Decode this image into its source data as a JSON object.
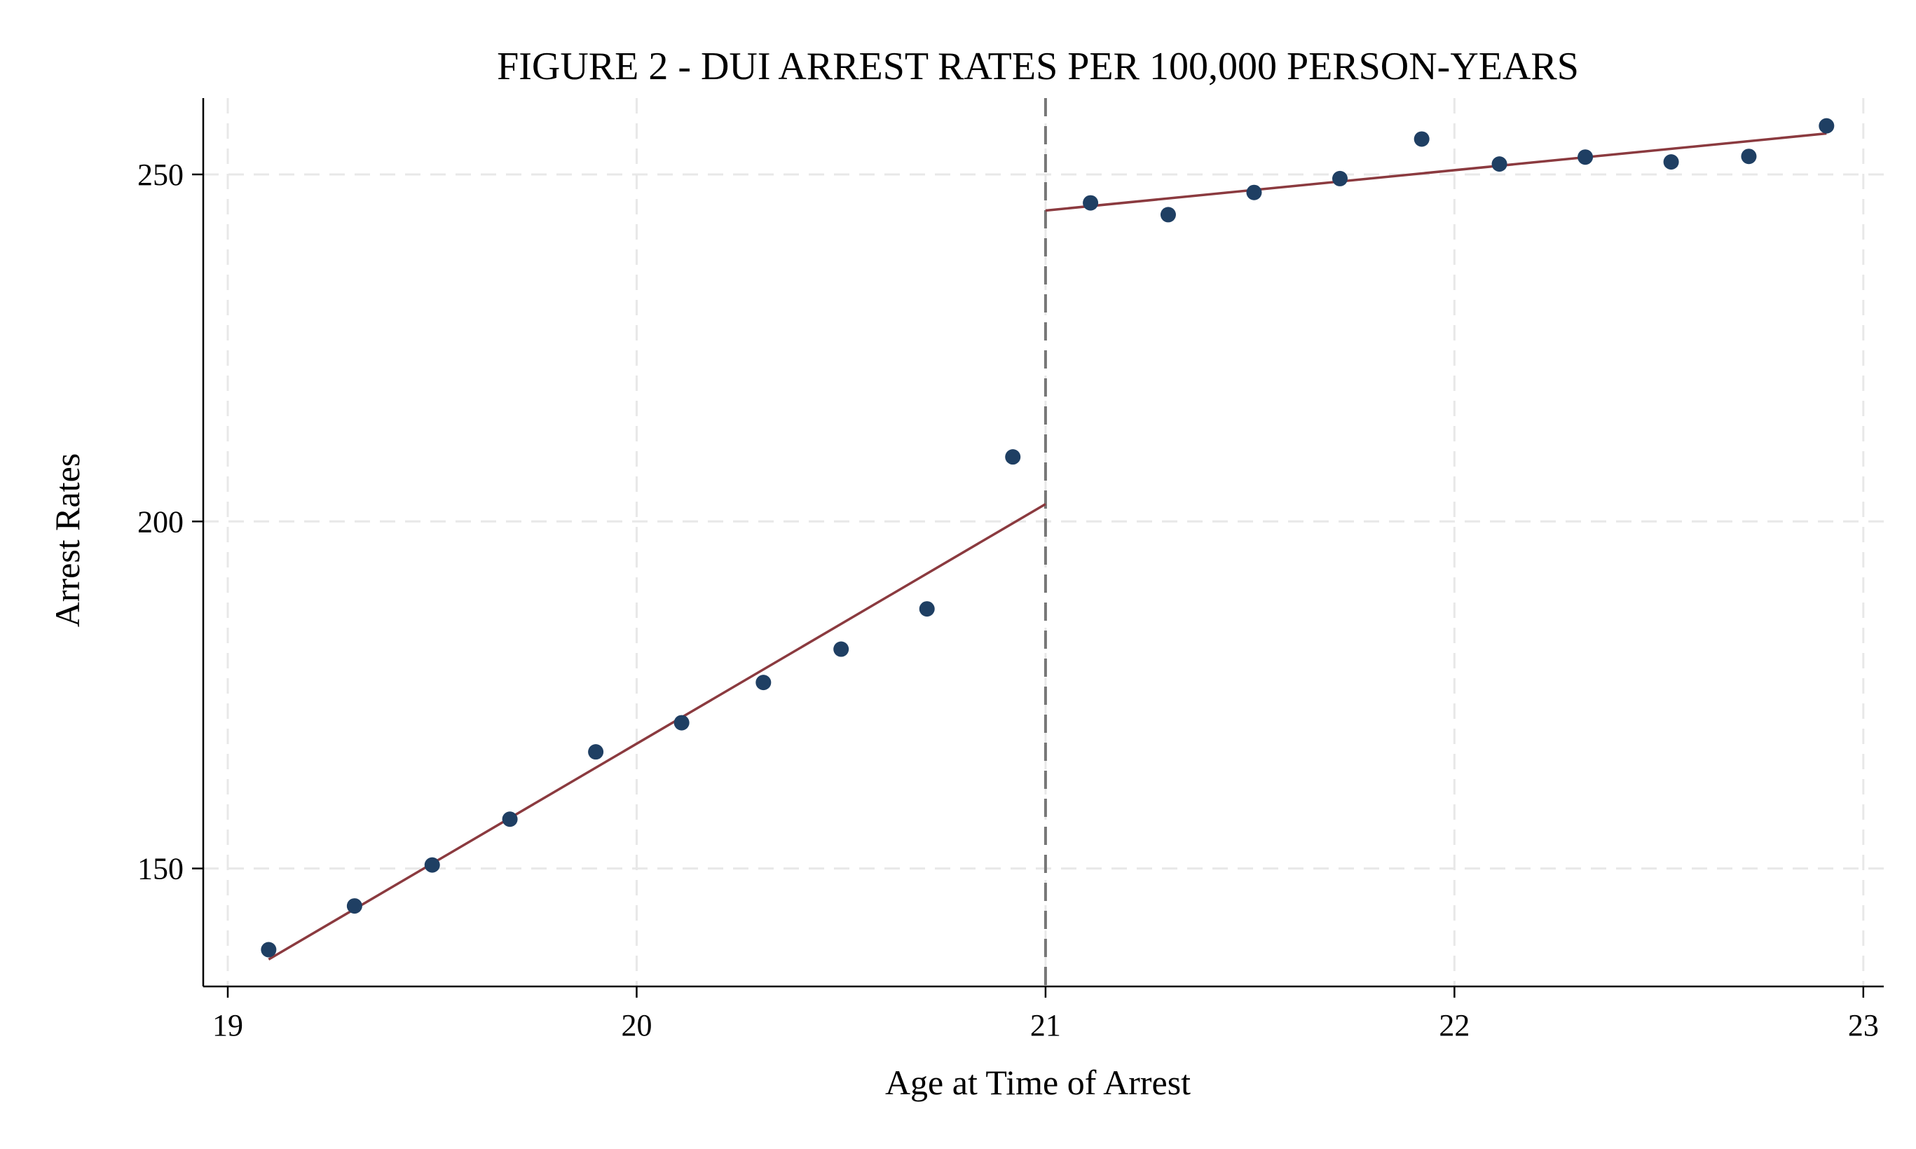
{
  "chart_data": {
    "type": "scatter",
    "title": "FIGURE 2 - DUI ARREST RATES PER 100,000 PERSON-YEARS",
    "xlabel": "Age at Time of Arrest",
    "ylabel": "Arrest Rates",
    "xlim": [
      18.94,
      23.05
    ],
    "ylim": [
      133,
      261
    ],
    "x_ticks": [
      19,
      20,
      21,
      22,
      23
    ],
    "x_tick_labels": [
      "19",
      "20",
      "21",
      "22",
      "23"
    ],
    "y_ticks": [
      150,
      200,
      250
    ],
    "y_tick_labels": [
      "150",
      "200",
      "250"
    ],
    "grid": true,
    "cutoff_x": 21,
    "series": [
      {
        "values": [
          {
            "x": 19.1,
            "y": 138.3
          },
          {
            "x": 19.31,
            "y": 144.6
          },
          {
            "x": 19.5,
            "y": 150.5
          },
          {
            "x": 19.69,
            "y": 157.1
          },
          {
            "x": 19.9,
            "y": 166.8
          },
          {
            "x": 20.11,
            "y": 171.0
          },
          {
            "x": 20.31,
            "y": 176.8
          },
          {
            "x": 20.5,
            "y": 181.6
          },
          {
            "x": 20.71,
            "y": 187.4
          },
          {
            "x": 20.92,
            "y": 209.3
          },
          {
            "x": 21.11,
            "y": 245.9
          },
          {
            "x": 21.3,
            "y": 244.2
          },
          {
            "x": 21.51,
            "y": 247.4
          },
          {
            "x": 21.72,
            "y": 249.4
          },
          {
            "x": 21.92,
            "y": 255.1
          },
          {
            "x": 22.11,
            "y": 251.5
          },
          {
            "x": 22.32,
            "y": 252.5
          },
          {
            "x": 22.53,
            "y": 251.8
          },
          {
            "x": 22.72,
            "y": 252.6
          },
          {
            "x": 22.91,
            "y": 257.0
          }
        ],
        "color": "#1f3f63"
      }
    ],
    "fit_lines": [
      {
        "x": [
          19.1,
          21.0
        ],
        "y": [
          136.9,
          202.5
        ],
        "color": "#8b3a3f"
      },
      {
        "x": [
          21.0,
          22.91
        ],
        "y": [
          244.8,
          255.9
        ],
        "color": "#8b3a3f"
      }
    ],
    "colors": {
      "points": "#1f3f63",
      "fit": "#8b3a3f",
      "cutoff": "#777777",
      "grid": "#e8e8e8"
    }
  }
}
